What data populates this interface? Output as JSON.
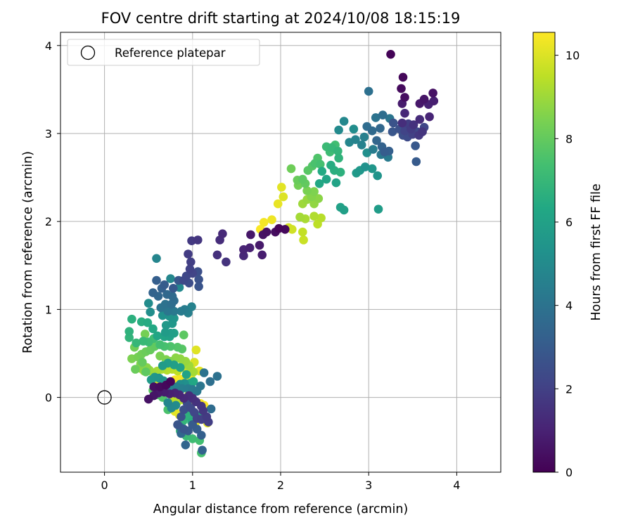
{
  "chart_data": {
    "type": "scatter",
    "title": "FOV centre drift starting at 2024/10/08 18:15:19",
    "xlabel": "Angular distance from reference (arcmin)",
    "ylabel": "Rotation from reference (arcmin)",
    "xlim": [
      -0.5,
      4.5
    ],
    "ylim": [
      -0.85,
      4.15
    ],
    "xticks": [
      0,
      1,
      2,
      3,
      4
    ],
    "yticks": [
      0,
      1,
      2,
      3,
      4
    ],
    "grid": true,
    "colormap": "viridis",
    "colorbar": {
      "label": "Hours from first FF file",
      "range": [
        0,
        10.55
      ],
      "ticks": [
        0,
        2,
        4,
        6,
        8,
        10
      ]
    },
    "legend": {
      "position": "top-left",
      "entries": [
        "Reference platepar"
      ]
    },
    "reference_point": {
      "x": 0,
      "y": 0
    },
    "point_columns": [
      "x",
      "y",
      "hours"
    ],
    "points": [
      [
        3.25,
        3.9,
        0.1
      ],
      [
        3.39,
        3.64,
        0.2
      ],
      [
        3.37,
        3.51,
        0.3
      ],
      [
        3.41,
        3.41,
        0.4
      ],
      [
        3.73,
        3.46,
        0.5
      ],
      [
        3.63,
        3.39,
        0.6
      ],
      [
        3.58,
        3.34,
        0.7
      ],
      [
        3.38,
        3.34,
        0.8
      ],
      [
        3.74,
        3.37,
        0.9
      ],
      [
        3.68,
        3.33,
        1.0
      ],
      [
        3.69,
        3.19,
        1.1
      ],
      [
        3.41,
        3.23,
        1.2
      ],
      [
        3.58,
        3.16,
        1.3
      ],
      [
        3.38,
        3.12,
        1.4
      ],
      [
        3.51,
        3.1,
        1.5
      ],
      [
        3.61,
        3.02,
        1.6
      ],
      [
        3.57,
        2.98,
        1.7
      ],
      [
        3.48,
        3.05,
        1.8
      ],
      [
        3.45,
        3.11,
        1.9
      ],
      [
        3.5,
        2.99,
        2.0
      ],
      [
        3.41,
        3.03,
        2.1
      ],
      [
        3.63,
        3.07,
        2.2
      ],
      [
        3.55,
        3.02,
        2.3
      ],
      [
        3.44,
        2.96,
        2.4
      ],
      [
        3.39,
        2.98,
        2.5
      ],
      [
        3.35,
        3.05,
        2.6
      ],
      [
        3.28,
        3.12,
        2.7
      ],
      [
        3.27,
        3.02,
        2.8
      ],
      [
        3.53,
        2.86,
        2.9
      ],
      [
        3.54,
        2.68,
        3.0
      ],
      [
        3.18,
        2.79,
        3.1
      ],
      [
        3.23,
        2.8,
        3.2
      ],
      [
        3.15,
        2.85,
        3.3
      ],
      [
        3.09,
        2.92,
        3.4
      ],
      [
        3.13,
        3.06,
        3.5
      ],
      [
        3.04,
        3.03,
        3.6
      ],
      [
        2.98,
        3.08,
        3.7
      ],
      [
        3.16,
        3.21,
        3.8
      ],
      [
        3.0,
        3.48,
        3.9
      ],
      [
        3.08,
        3.18,
        4.0
      ],
      [
        3.24,
        3.17,
        4.1
      ],
      [
        3.14,
        2.76,
        4.2
      ],
      [
        3.22,
        2.73,
        4.3
      ],
      [
        3.05,
        2.82,
        4.4
      ],
      [
        2.95,
        2.96,
        4.5
      ],
      [
        2.92,
        2.87,
        4.6
      ],
      [
        2.85,
        2.93,
        4.7
      ],
      [
        2.78,
        2.9,
        4.8
      ],
      [
        2.72,
        3.14,
        4.9
      ],
      [
        2.66,
        3.04,
        5.0
      ],
      [
        2.83,
        3.05,
        5.1
      ],
      [
        2.98,
        2.78,
        5.2
      ],
      [
        2.96,
        2.62,
        5.3
      ],
      [
        3.1,
        2.52,
        5.4
      ],
      [
        3.04,
        2.6,
        5.5
      ],
      [
        2.9,
        2.58,
        5.6
      ],
      [
        2.86,
        2.55,
        5.7
      ],
      [
        3.11,
        2.14,
        5.8
      ],
      [
        2.72,
        2.13,
        5.9
      ],
      [
        2.68,
        2.16,
        6.0
      ],
      [
        2.63,
        2.44,
        6.1
      ],
      [
        2.52,
        2.48,
        6.2
      ],
      [
        2.44,
        2.43,
        6.3
      ],
      [
        2.47,
        2.57,
        6.4
      ],
      [
        2.57,
        2.64,
        6.5
      ],
      [
        2.61,
        2.58,
        6.6
      ],
      [
        2.68,
        2.56,
        6.7
      ],
      [
        2.66,
        2.72,
        6.8
      ],
      [
        2.65,
        2.8,
        6.9
      ],
      [
        2.58,
        2.84,
        7.0
      ],
      [
        2.52,
        2.85,
        7.1
      ],
      [
        2.56,
        2.79,
        7.2
      ],
      [
        2.62,
        2.87,
        7.3
      ],
      [
        2.45,
        2.65,
        7.4
      ],
      [
        2.39,
        2.66,
        7.5
      ],
      [
        2.42,
        2.72,
        7.6
      ],
      [
        2.36,
        2.63,
        7.7
      ],
      [
        2.31,
        2.58,
        7.8
      ],
      [
        2.25,
        2.48,
        7.9
      ],
      [
        2.28,
        2.43,
        8.0
      ],
      [
        2.19,
        2.47,
        8.1
      ],
      [
        2.12,
        2.6,
        8.2
      ],
      [
        2.2,
        2.41,
        8.3
      ],
      [
        2.3,
        2.35,
        8.4
      ],
      [
        2.38,
        2.34,
        8.5
      ],
      [
        2.35,
        2.28,
        8.6
      ],
      [
        2.43,
        2.26,
        8.7
      ],
      [
        2.38,
        2.2,
        8.8
      ],
      [
        2.3,
        2.25,
        8.9
      ],
      [
        2.25,
        2.2,
        9.0
      ],
      [
        2.22,
        2.05,
        9.1
      ],
      [
        2.28,
        2.03,
        9.2
      ],
      [
        2.38,
        2.06,
        9.3
      ],
      [
        2.46,
        2.04,
        9.4
      ],
      [
        2.42,
        1.97,
        9.5
      ],
      [
        2.25,
        1.88,
        9.6
      ],
      [
        2.26,
        1.79,
        9.7
      ],
      [
        2.13,
        1.91,
        9.8
      ],
      [
        2.09,
        1.93,
        9.9
      ],
      [
        2.03,
        2.28,
        10.0
      ],
      [
        2.01,
        2.39,
        10.1
      ],
      [
        1.97,
        2.2,
        10.2
      ],
      [
        1.9,
        2.02,
        10.3
      ],
      [
        1.81,
        1.99,
        10.4
      ],
      [
        1.77,
        1.91,
        10.5
      ],
      [
        1.98,
        1.92,
        0.15
      ],
      [
        2.05,
        1.91,
        0.25
      ],
      [
        1.94,
        1.88,
        0.35
      ],
      [
        1.84,
        1.88,
        0.45
      ],
      [
        1.8,
        1.85,
        0.55
      ],
      [
        1.66,
        1.85,
        0.65
      ],
      [
        1.76,
        1.73,
        0.75
      ],
      [
        1.79,
        1.62,
        0.85
      ],
      [
        1.65,
        1.7,
        0.95
      ],
      [
        1.58,
        1.68,
        1.05
      ],
      [
        1.58,
        1.61,
        1.15
      ],
      [
        1.34,
        1.86,
        1.25
      ],
      [
        1.31,
        1.79,
        1.35
      ],
      [
        1.28,
        1.62,
        1.45
      ],
      [
        1.38,
        1.54,
        1.55
      ],
      [
        1.06,
        1.79,
        1.65
      ],
      [
        0.99,
        1.78,
        1.75
      ],
      [
        0.95,
        1.63,
        1.85
      ],
      [
        0.98,
        1.54,
        1.95
      ],
      [
        0.97,
        1.46,
        2.05
      ],
      [
        1.0,
        1.41,
        2.15
      ],
      [
        0.93,
        1.38,
        2.25
      ],
      [
        0.9,
        1.33,
        2.35
      ],
      [
        0.96,
        1.3,
        2.45
      ],
      [
        1.06,
        1.43,
        2.55
      ],
      [
        1.07,
        1.34,
        2.65
      ],
      [
        1.07,
        1.26,
        2.75
      ],
      [
        0.84,
        1.33,
        2.85
      ],
      [
        0.78,
        1.24,
        2.95
      ],
      [
        0.68,
        1.28,
        3.05
      ],
      [
        0.59,
        1.33,
        3.15
      ],
      [
        0.65,
        1.24,
        3.25
      ],
      [
        0.55,
        1.19,
        3.35
      ],
      [
        0.61,
        1.15,
        3.45
      ],
      [
        0.71,
        1.17,
        3.55
      ],
      [
        0.77,
        1.15,
        3.65
      ],
      [
        0.79,
        1.1,
        3.75
      ],
      [
        0.76,
        1.06,
        3.85
      ],
      [
        0.69,
        1.06,
        3.95
      ],
      [
        0.64,
        1.02,
        4.05
      ],
      [
        0.72,
        0.98,
        4.15
      ],
      [
        0.79,
        0.98,
        4.25
      ],
      [
        0.87,
        0.98,
        4.35
      ],
      [
        0.91,
        1.0,
        4.45
      ],
      [
        0.95,
        0.96,
        4.55
      ],
      [
        0.99,
        1.03,
        4.65
      ],
      [
        0.59,
        1.58,
        4.75
      ],
      [
        0.75,
        1.35,
        4.85
      ],
      [
        0.85,
        1.25,
        4.95
      ],
      [
        0.5,
        1.07,
        5.05
      ],
      [
        0.52,
        0.97,
        5.15
      ],
      [
        0.66,
        0.93,
        5.25
      ],
      [
        0.74,
        0.92,
        5.35
      ],
      [
        0.79,
        0.9,
        5.45
      ],
      [
        0.77,
        0.84,
        5.55
      ],
      [
        0.7,
        0.82,
        5.65
      ],
      [
        0.69,
        0.74,
        5.75
      ],
      [
        0.75,
        0.73,
        5.85
      ],
      [
        0.79,
        0.73,
        5.95
      ],
      [
        0.74,
        0.69,
        6.05
      ],
      [
        0.68,
        0.69,
        6.15
      ],
      [
        0.6,
        0.7,
        6.25
      ],
      [
        0.55,
        0.78,
        6.35
      ],
      [
        0.49,
        0.85,
        6.45
      ],
      [
        0.42,
        0.86,
        6.55
      ],
      [
        0.31,
        0.89,
        6.65
      ],
      [
        0.28,
        0.75,
        6.75
      ],
      [
        0.28,
        0.68,
        6.85
      ],
      [
        0.36,
        0.62,
        6.95
      ],
      [
        0.44,
        0.64,
        7.05
      ],
      [
        0.5,
        0.63,
        7.15
      ],
      [
        0.56,
        0.67,
        7.25
      ],
      [
        0.63,
        0.6,
        7.35
      ],
      [
        0.68,
        0.58,
        7.45
      ],
      [
        0.75,
        0.58,
        7.55
      ],
      [
        0.83,
        0.57,
        7.65
      ],
      [
        0.88,
        0.55,
        7.75
      ],
      [
        0.9,
        0.71,
        7.85
      ],
      [
        0.57,
        0.58,
        7.95
      ],
      [
        0.52,
        0.54,
        8.05
      ],
      [
        0.47,
        0.52,
        8.15
      ],
      [
        0.42,
        0.49,
        8.25
      ],
      [
        0.38,
        0.46,
        8.35
      ],
      [
        0.31,
        0.44,
        8.45
      ],
      [
        0.41,
        0.38,
        8.55
      ],
      [
        0.48,
        0.34,
        8.65
      ],
      [
        0.41,
        0.33,
        8.75
      ],
      [
        0.45,
        0.3,
        8.85
      ],
      [
        0.51,
        0.31,
        8.95
      ],
      [
        0.55,
        0.28,
        9.05
      ],
      [
        0.6,
        0.3,
        9.15
      ],
      [
        0.65,
        0.32,
        9.25
      ],
      [
        0.71,
        0.31,
        9.35
      ],
      [
        0.77,
        0.32,
        9.45
      ],
      [
        0.83,
        0.3,
        9.55
      ],
      [
        0.89,
        0.37,
        9.65
      ],
      [
        0.93,
        0.31,
        9.75
      ],
      [
        0.98,
        0.33,
        9.85
      ],
      [
        1.02,
        0.4,
        9.95
      ],
      [
        1.04,
        0.54,
        10.05
      ],
      [
        1.08,
        0.3,
        10.15
      ],
      [
        0.98,
        0.24,
        10.25
      ],
      [
        0.92,
        0.23,
        10.35
      ],
      [
        0.85,
        0.21,
        10.45
      ],
      [
        0.8,
        0.2,
        10.5
      ],
      [
        0.75,
        0.18,
        0.12
      ],
      [
        0.7,
        0.14,
        0.22
      ],
      [
        0.63,
        0.12,
        0.32
      ],
      [
        0.56,
        0.12,
        0.42
      ],
      [
        0.5,
        -0.02,
        0.52
      ],
      [
        0.56,
        0.02,
        0.62
      ],
      [
        0.61,
        0.05,
        0.72
      ],
      [
        0.68,
        0.06,
        0.82
      ],
      [
        0.74,
        0.04,
        0.92
      ],
      [
        0.8,
        0.05,
        1.02
      ],
      [
        0.85,
        0.03,
        1.12
      ],
      [
        0.9,
        -0.01,
        1.22
      ],
      [
        0.96,
        0.02,
        1.32
      ],
      [
        1.0,
        -0.01,
        1.42
      ],
      [
        1.04,
        -0.05,
        1.52
      ],
      [
        1.1,
        -0.1,
        1.62
      ],
      [
        1.12,
        -0.15,
        1.72
      ],
      [
        1.16,
        -0.22,
        1.82
      ],
      [
        1.18,
        -0.28,
        1.92
      ],
      [
        1.1,
        -0.25,
        2.02
      ],
      [
        1.05,
        -0.24,
        2.12
      ],
      [
        1.02,
        -0.17,
        2.22
      ],
      [
        0.98,
        -0.12,
        2.32
      ],
      [
        0.94,
        -0.07,
        2.42
      ],
      [
        0.9,
        -0.14,
        2.52
      ],
      [
        0.87,
        -0.22,
        2.62
      ],
      [
        0.83,
        -0.31,
        2.72
      ],
      [
        0.9,
        -0.36,
        2.82
      ],
      [
        0.95,
        -0.38,
        2.92
      ],
      [
        1.0,
        -0.31,
        3.02
      ],
      [
        1.05,
        -0.36,
        3.12
      ],
      [
        1.1,
        -0.43,
        3.22
      ],
      [
        1.11,
        -0.6,
        3.32
      ],
      [
        0.92,
        -0.54,
        3.42
      ],
      [
        0.87,
        -0.41,
        3.52
      ],
      [
        0.86,
        -0.34,
        3.62
      ],
      [
        1.21,
        -0.13,
        3.72
      ],
      [
        1.2,
        0.18,
        3.82
      ],
      [
        1.28,
        0.24,
        3.92
      ],
      [
        1.13,
        0.28,
        4.02
      ],
      [
        1.09,
        0.13,
        4.12
      ],
      [
        1.05,
        0.07,
        4.22
      ],
      [
        1.0,
        0.09,
        4.32
      ],
      [
        0.95,
        0.1,
        4.42
      ],
      [
        0.88,
        0.1,
        4.52
      ],
      [
        0.82,
        0.12,
        4.62
      ],
      [
        0.77,
        0.1,
        4.72
      ],
      [
        0.72,
        -0.06,
        4.82
      ],
      [
        0.76,
        -0.12,
        4.92
      ],
      [
        0.81,
        -0.09,
        5.02
      ],
      [
        0.86,
        0.15,
        5.12
      ],
      [
        0.91,
        0.16,
        5.22
      ],
      [
        0.67,
        0.19,
        5.32
      ],
      [
        0.62,
        0.22,
        5.42
      ],
      [
        0.57,
        0.23,
        5.52
      ],
      [
        0.53,
        0.2,
        5.62
      ],
      [
        0.66,
        0.36,
        5.72
      ],
      [
        0.72,
        0.39,
        5.82
      ],
      [
        0.79,
        0.37,
        5.92
      ],
      [
        0.86,
        0.34,
        6.02
      ],
      [
        0.93,
        0.26,
        6.12
      ],
      [
        0.97,
        0.16,
        6.22
      ],
      [
        1.01,
        0.18,
        6.32
      ],
      [
        1.06,
        -0.21,
        6.42
      ],
      [
        1.12,
        -0.24,
        6.52
      ],
      [
        0.99,
        -0.28,
        6.62
      ],
      [
        0.96,
        -0.22,
        6.72
      ],
      [
        0.93,
        -0.18,
        6.82
      ],
      [
        0.89,
        -0.27,
        6.92
      ],
      [
        0.86,
        -0.38,
        7.02
      ],
      [
        0.93,
        -0.44,
        7.12
      ],
      [
        1.0,
        -0.47,
        7.22
      ],
      [
        1.08,
        -0.49,
        7.32
      ],
      [
        1.1,
        -0.63,
        7.42
      ],
      [
        0.72,
        -0.14,
        7.52
      ],
      [
        0.66,
        0.0,
        7.62
      ],
      [
        0.6,
        0.03,
        7.72
      ],
      [
        0.55,
        0.08,
        7.82
      ],
      [
        0.47,
        0.29,
        7.92
      ],
      [
        0.43,
        0.4,
        8.02
      ],
      [
        0.35,
        0.32,
        8.12
      ],
      [
        0.34,
        0.57,
        8.22
      ],
      [
        0.46,
        0.72,
        8.32
      ],
      [
        0.63,
        0.47,
        8.42
      ],
      [
        0.7,
        0.43,
        8.52
      ],
      [
        0.75,
        0.41,
        8.62
      ],
      [
        0.81,
        0.45,
        8.72
      ],
      [
        0.86,
        0.44,
        8.82
      ],
      [
        0.92,
        0.41,
        8.92
      ],
      [
        0.96,
        0.36,
        9.02
      ],
      [
        1.01,
        0.29,
        9.12
      ],
      [
        0.96,
        0.04,
        9.22
      ],
      [
        0.9,
        -0.03,
        9.32
      ],
      [
        0.83,
        -0.05,
        9.42
      ],
      [
        0.78,
        -0.03,
        9.52
      ],
      [
        0.75,
        0.07,
        9.62
      ],
      [
        0.69,
        0.09,
        9.72
      ],
      [
        0.64,
        0.11,
        9.82
      ],
      [
        0.59,
        0.13,
        9.92
      ],
      [
        0.57,
        0.17,
        10.02
      ],
      [
        0.8,
        -0.16,
        10.12
      ],
      [
        0.85,
        -0.2,
        10.22
      ],
      [
        0.91,
        -0.21,
        10.32
      ],
      [
        1.09,
        -0.07,
        10.42
      ],
      [
        1.13,
        -0.09,
        10.52
      ],
      [
        1.17,
        -0.29,
        10.1
      ],
      [
        0.97,
        -0.07,
        10.3
      ],
      [
        1.03,
        -0.29,
        10.2
      ]
    ]
  }
}
